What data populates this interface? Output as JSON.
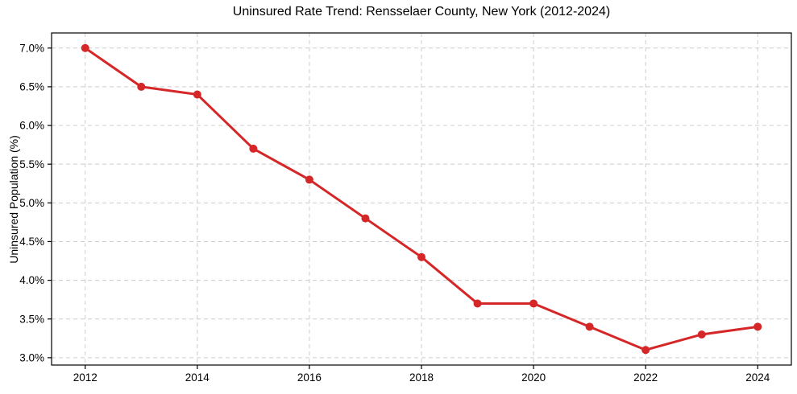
{
  "chart_data": {
    "type": "line",
    "title": "Uninsured Rate Trend: Rensselaer County, New York (2012-2024)",
    "xlabel": "",
    "ylabel": "Uninsured Population (%)",
    "x": [
      2012,
      2013,
      2014,
      2015,
      2016,
      2017,
      2018,
      2019,
      2020,
      2021,
      2022,
      2023,
      2024
    ],
    "values": [
      7.0,
      6.5,
      6.4,
      5.7,
      5.3,
      4.8,
      4.3,
      3.7,
      3.7,
      3.4,
      3.1,
      3.3,
      3.4
    ],
    "x_tick_values": [
      2012,
      2014,
      2016,
      2018,
      2020,
      2022,
      2024
    ],
    "x_tick_labels": [
      "2012",
      "2014",
      "2016",
      "2018",
      "2020",
      "2022",
      "2024"
    ],
    "y_tick_values": [
      3.0,
      3.5,
      4.0,
      4.5,
      5.0,
      5.5,
      6.0,
      6.5,
      7.0
    ],
    "y_tick_labels": [
      "3.0%",
      "3.5%",
      "4.0%",
      "4.5%",
      "5.0%",
      "5.5%",
      "6.0%",
      "6.5%",
      "7.0%"
    ],
    "xlim": [
      2011.4,
      2024.6
    ],
    "ylim": [
      2.905,
      7.195
    ],
    "grid": true,
    "legend": "none",
    "line_color": "#d62728",
    "marker_color": "#d62728",
    "grid_color": "#cccccc",
    "axis_color": "#000000",
    "text_color": "#000000",
    "background_color": "#ffffff"
  }
}
